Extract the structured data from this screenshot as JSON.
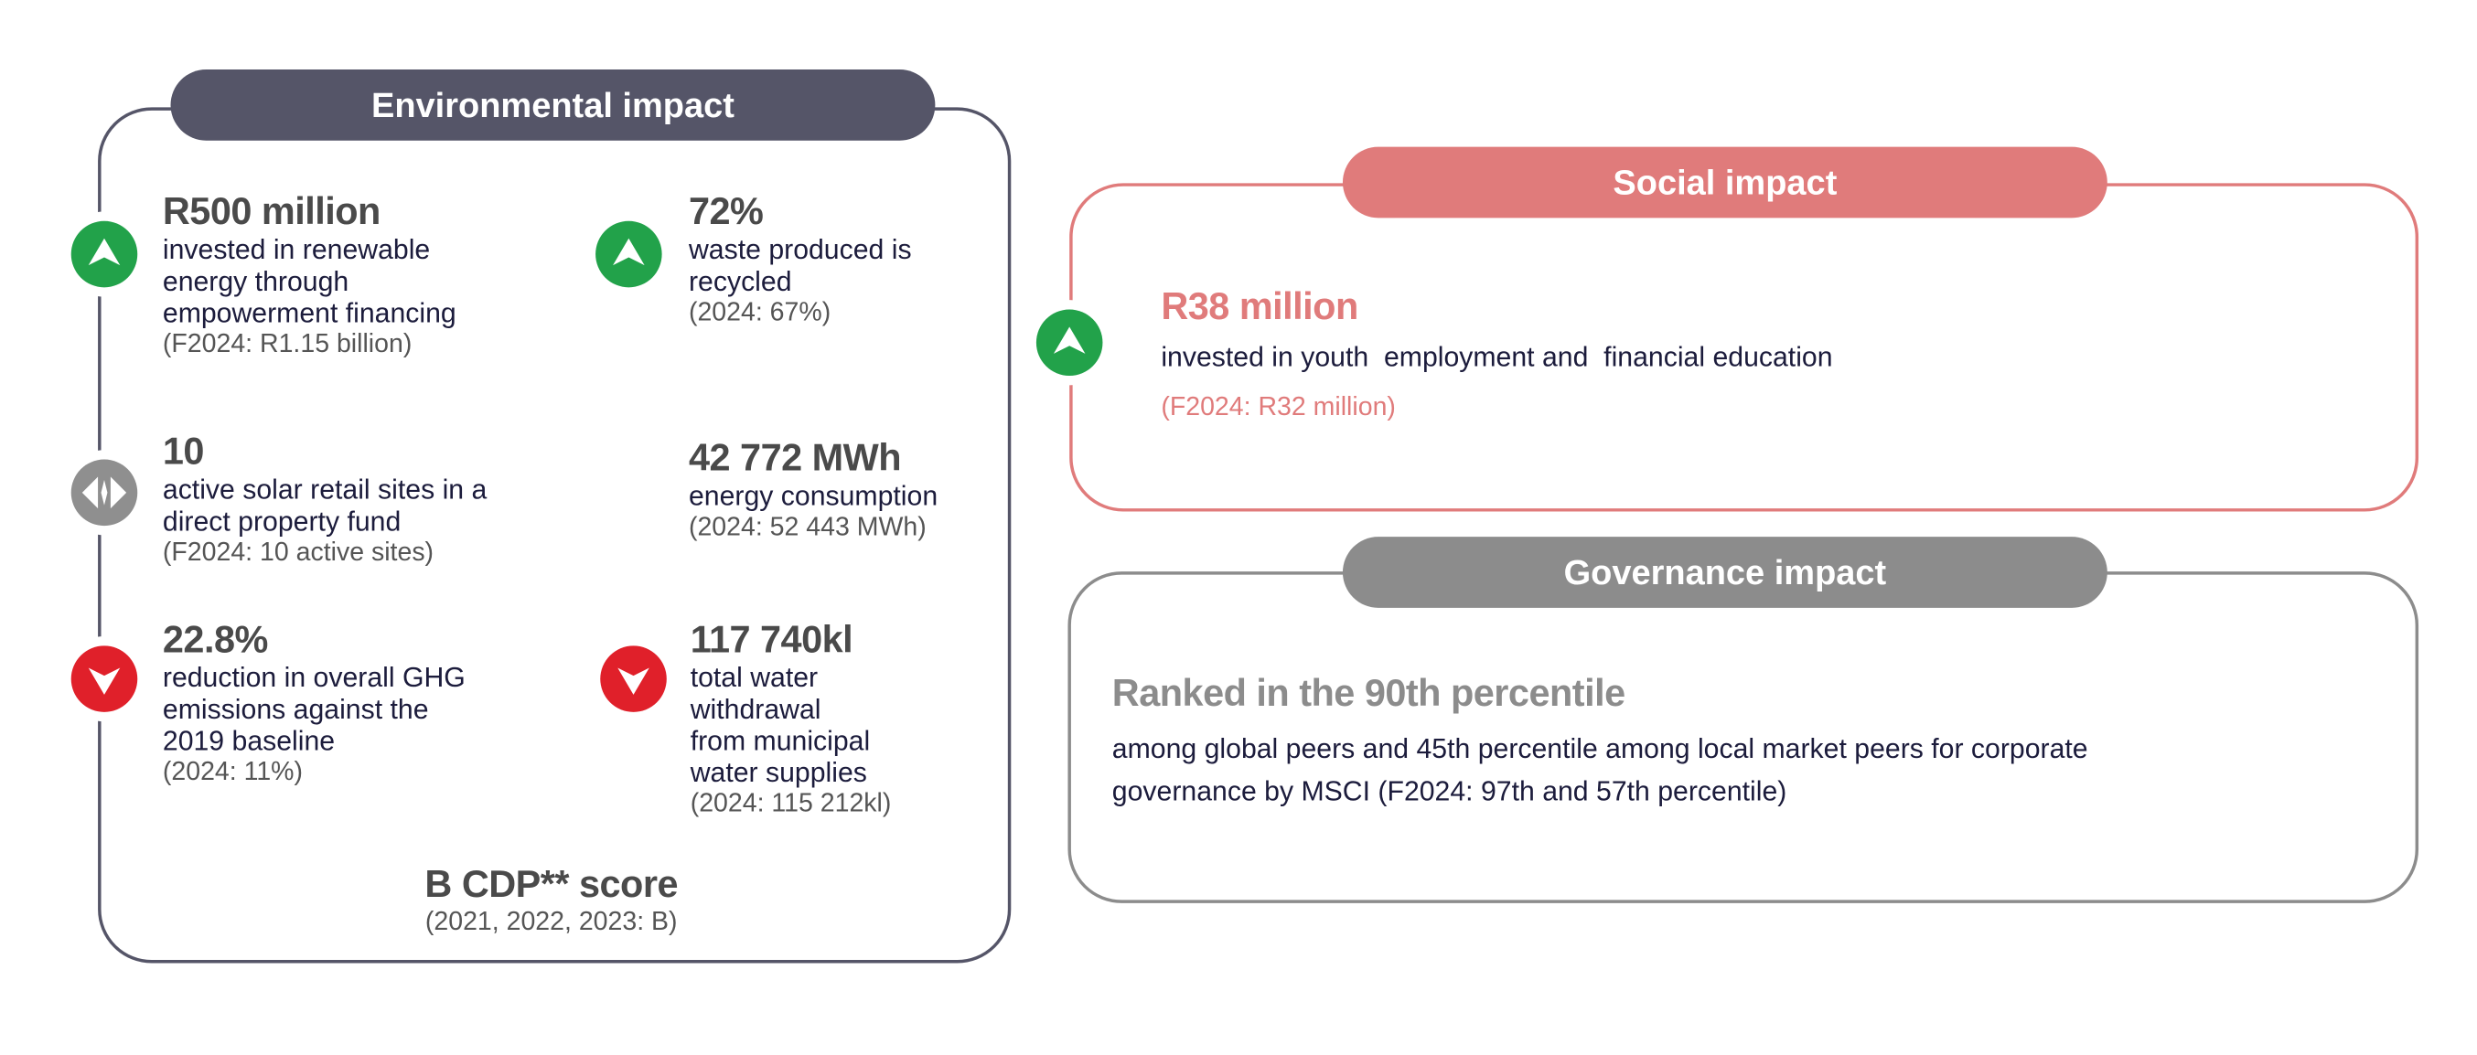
{
  "colors": {
    "environmental": "#555568",
    "social": "#e07b7b",
    "governance": "#8c8c8c",
    "up": "#22a24a",
    "down": "#e0202a",
    "neutral": "#8f8f8f"
  },
  "environmental": {
    "title": "Environmental impact",
    "items": [
      {
        "icon": "up-arrow-icon",
        "value": "R500 million",
        "lines": [
          "invested in renewable",
          "energy through",
          "empowerment financing"
        ],
        "prior": "(F2024: R1.15 billion)"
      },
      {
        "icon": "up-arrow-icon",
        "value": "72%",
        "lines": [
          "waste produced is",
          "recycled"
        ],
        "prior": "(2024: 67%)"
      },
      {
        "icon": "neutral-arrows-icon",
        "value": "10",
        "lines": [
          "active solar retail sites in a",
          "direct property fund"
        ],
        "prior": "(F2024: 10 active sites)"
      },
      {
        "icon": "none",
        "value": "42 772 MWh",
        "lines": [
          "energy consumption"
        ],
        "prior": "(2024: 52 443 MWh)"
      },
      {
        "icon": "down-arrow-icon",
        "value": "22.8%",
        "lines": [
          "reduction in overall GHG",
          "emissions against the",
          "2019 baseline"
        ],
        "prior": "(2024: 11%)"
      },
      {
        "icon": "down-arrow-icon",
        "value": "117 740kl",
        "lines": [
          "total water",
          "withdrawal",
          "from municipal",
          "water supplies"
        ],
        "prior": "(2024: 115 212kl)"
      }
    ],
    "cdp": {
      "value": "B CDP** score",
      "prior": "(2021, 2022, 2023: B)"
    }
  },
  "social": {
    "title": "Social impact",
    "icon": "up-arrow-icon",
    "value": "R38 million",
    "text": "invested in youth  employment and  financial education",
    "prior": "(F2024: R32 million)"
  },
  "governance": {
    "title": "Governance impact",
    "value": "Ranked in the 90th percentile",
    "lines": [
      "among global peers and 45th percentile among local market peers for corporate",
      "governance by MSCI (F2024: 97th and 57th percentile)"
    ]
  }
}
